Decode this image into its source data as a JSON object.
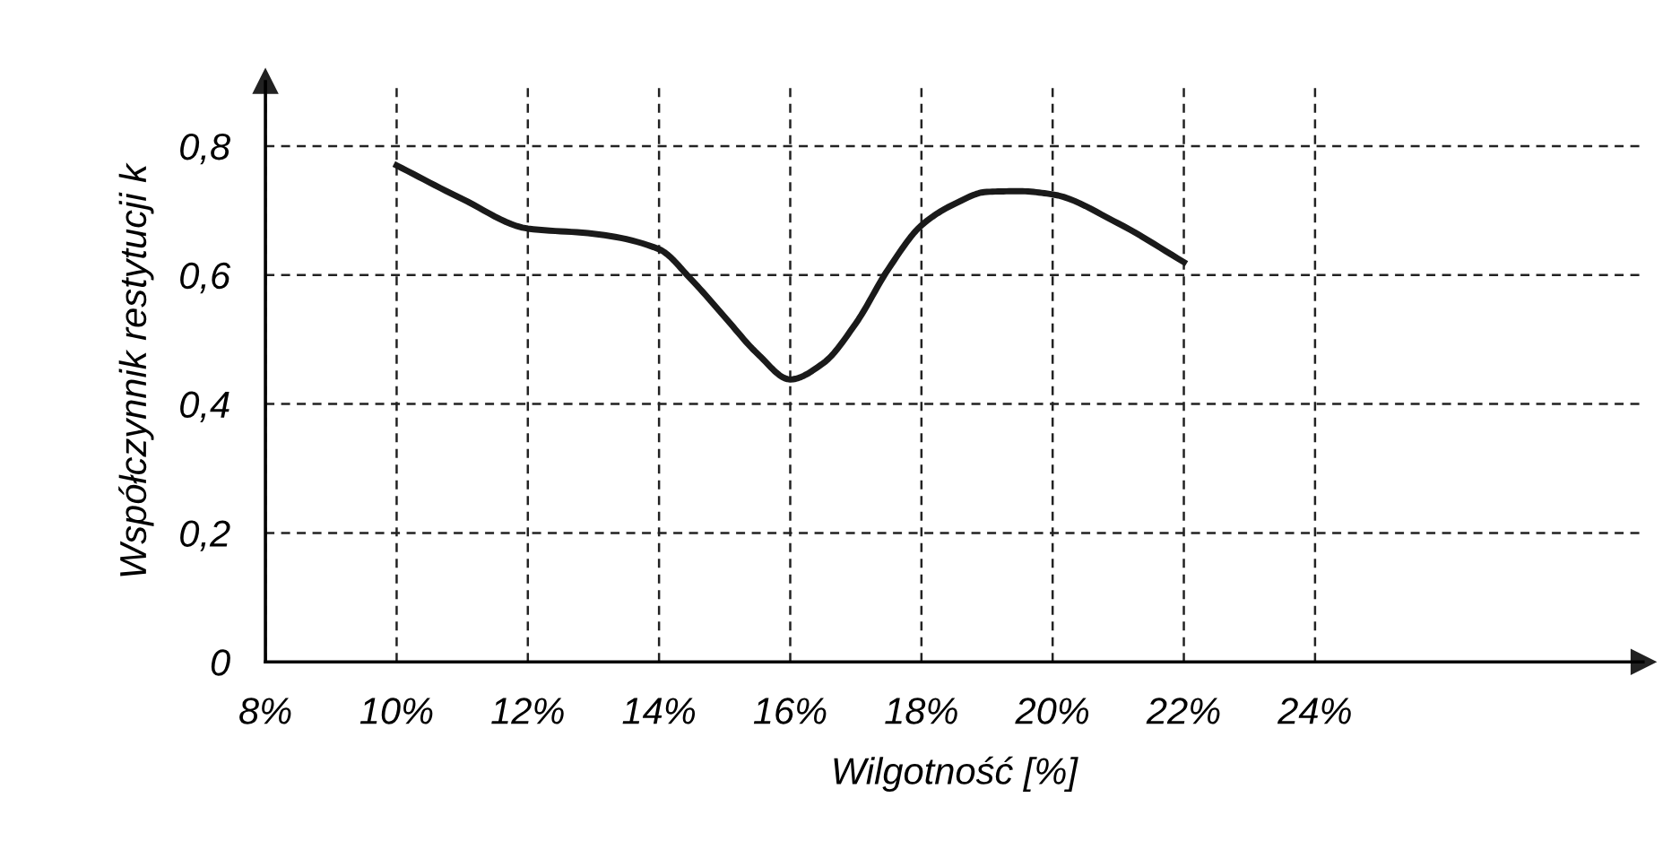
{
  "chart_data": {
    "type": "line",
    "xlabel": "Wilgotność [%]",
    "ylabel": "Współczynnik restytucji k",
    "x": [
      10,
      11,
      12,
      13,
      14,
      14.5,
      15,
      15.5,
      16,
      16.5,
      17,
      17.5,
      18,
      18.5,
      19,
      19.5,
      20,
      21,
      22
    ],
    "series": [
      {
        "color": "#1a1a1a",
        "values": [
          0.77,
          0.718,
          0.672,
          0.664,
          0.64,
          0.592,
          0.535,
          0.478,
          0.438,
          0.463,
          0.525,
          0.61,
          0.677,
          0.71,
          0.729,
          0.73,
          0.725,
          0.68,
          0.62
        ]
      }
    ],
    "xlim": [
      8,
      29
    ],
    "ylim": [
      0,
      0.9
    ],
    "xticks": [
      {
        "value": 8,
        "label": "8%"
      },
      {
        "value": 10,
        "label": "10%"
      },
      {
        "value": 12,
        "label": "12%"
      },
      {
        "value": 14,
        "label": "14%"
      },
      {
        "value": 16,
        "label": "16%"
      },
      {
        "value": 18,
        "label": "18%"
      },
      {
        "value": 20,
        "label": "20%"
      },
      {
        "value": 22,
        "label": "22%"
      },
      {
        "value": 24,
        "label": "24%"
      }
    ],
    "yticks": [
      {
        "value": 0,
        "label": "0"
      },
      {
        "value": 0.2,
        "label": "0,2"
      },
      {
        "value": 0.4,
        "label": "0,4"
      },
      {
        "value": 0.6,
        "label": "0,6"
      },
      {
        "value": 0.8,
        "label": "0,8"
      }
    ],
    "grid": true,
    "marker": "none",
    "line_style": "solid"
  }
}
